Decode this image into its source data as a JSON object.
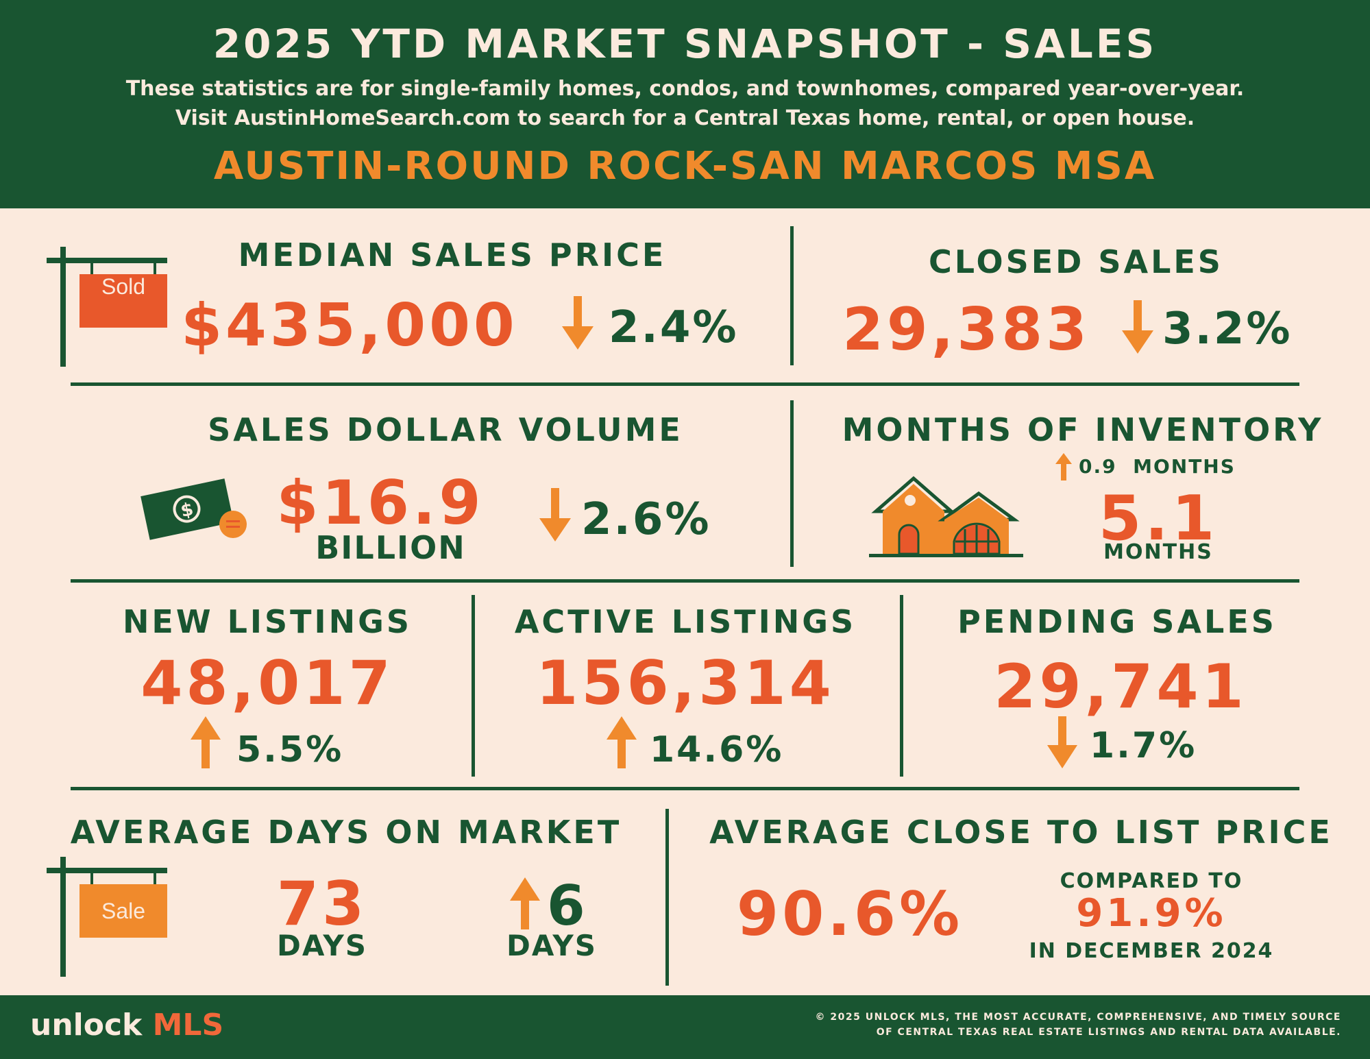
{
  "header": {
    "title": "2025 YTD MARKET SNAPSHOT - SALES",
    "subtitle_line1": "These statistics are for single-family homes, condos, and townhomes, compared year-over-year.",
    "subtitle_line2": "Visit AustinHomeSearch.com to search for a Central Texas home, rental, or open house.",
    "region": "AUSTIN-ROUND ROCK-SAN MARCOS MSA"
  },
  "median_sales_price": {
    "label": "MEDIAN SALES PRICE",
    "value": "$435,000",
    "change": "2.4%",
    "direction": "down",
    "sign_text": "Sold"
  },
  "closed_sales": {
    "label": "CLOSED SALES",
    "value": "29,383",
    "change": "3.2%",
    "direction": "down"
  },
  "sales_dollar_volume": {
    "label": "SALES DOLLAR VOLUME",
    "value": "$16.9",
    "unit": "BILLION",
    "change": "2.6%",
    "direction": "down"
  },
  "months_of_inventory": {
    "label": "MONTHS OF INVENTORY",
    "change": "0.9",
    "change_unit": "MONTHS",
    "direction": "up",
    "value": "5.1",
    "unit": "MONTHS"
  },
  "new_listings": {
    "label": "NEW LISTINGS",
    "value": "48,017",
    "change": "5.5%",
    "direction": "up"
  },
  "active_listings": {
    "label": "ACTIVE LISTINGS",
    "value": "156,314",
    "change": "14.6%",
    "direction": "up"
  },
  "pending_sales": {
    "label": "PENDING SALES",
    "value": "29,741",
    "change": "1.7%",
    "direction": "down"
  },
  "avg_days_on_market": {
    "label": "AVERAGE DAYS ON MARKET",
    "value": "73",
    "unit": "DAYS",
    "change": "6",
    "change_unit": "DAYS",
    "direction": "up",
    "sign_text": "Sale"
  },
  "avg_close_to_list": {
    "label": "AVERAGE CLOSE TO LIST PRICE",
    "value": "90.6%",
    "compare_label": "COMPARED TO",
    "compare_value": "91.9%",
    "compare_period": "IN DECEMBER 2024"
  },
  "footer": {
    "logo_part1": "unlock ",
    "logo_part2": "MLS",
    "copyright_line1": "© 2025 UNLOCK MLS, THE MOST ACCURATE, COMPREHENSIVE, AND TIMELY SOURCE",
    "copyright_line2": "OF CENTRAL TEXAS REAL ESTATE LISTINGS AND RENTAL DATA AVAILABLE."
  },
  "colors": {
    "green": "#195531",
    "orange": "#f08a2c",
    "red_orange": "#e8582b",
    "cream": "#fbeadd"
  },
  "icons": [
    "sold-sign-icon",
    "money-bill-icon",
    "house-icon",
    "sale-sign-icon",
    "arrow-down-icon",
    "arrow-up-icon"
  ]
}
